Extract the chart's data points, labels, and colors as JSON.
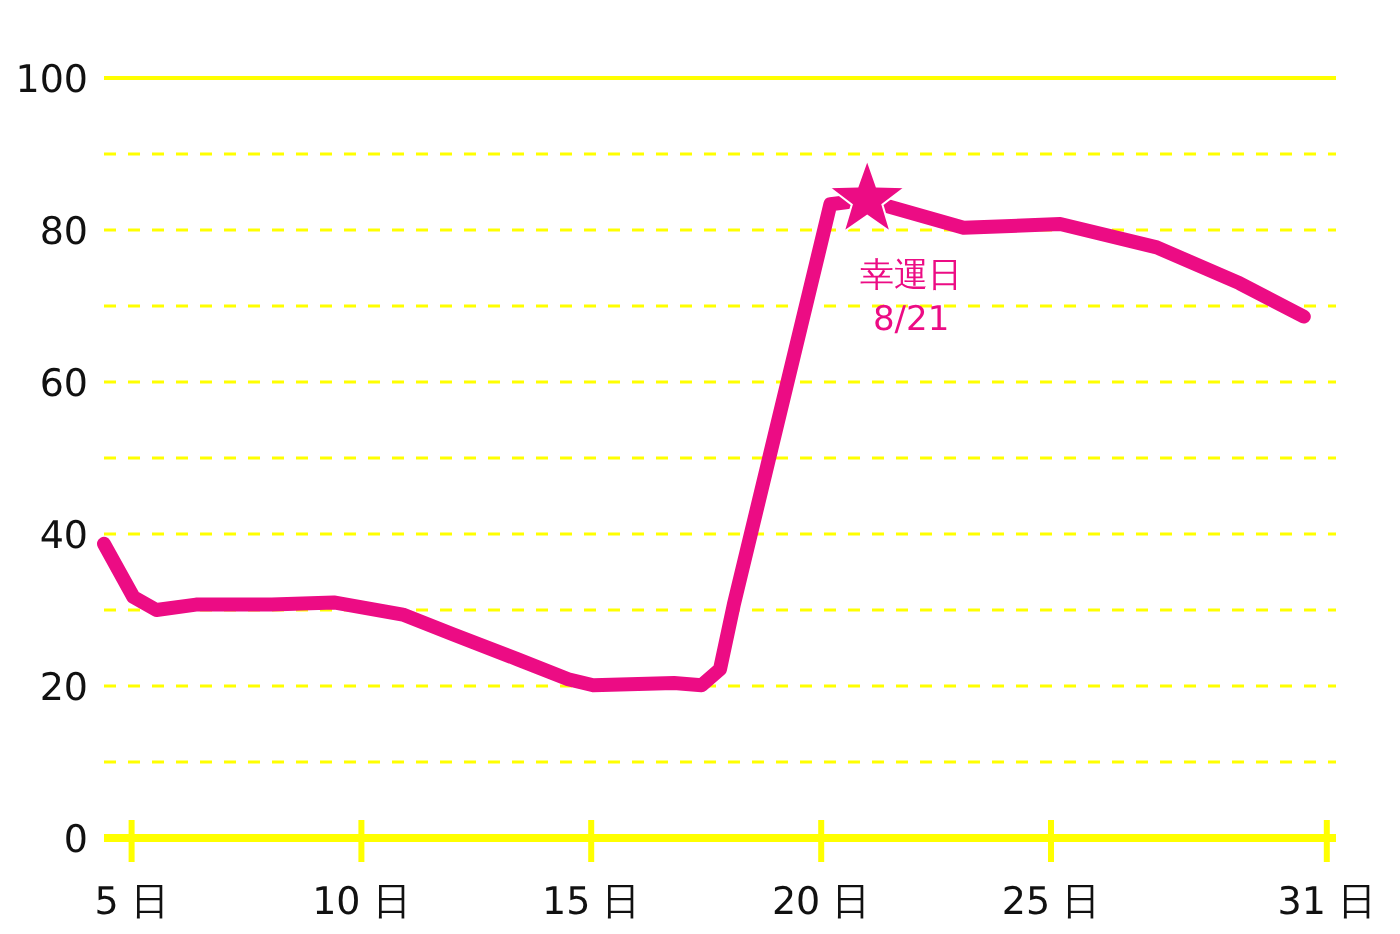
{
  "chart_data": {
    "type": "line",
    "x": [
      4.4,
      5.04,
      5.54,
      6.4,
      8.05,
      9.4,
      10.9,
      12,
      13.4,
      14.5,
      15.04,
      16.8,
      17.4,
      17.8,
      18.1,
      20.2,
      21,
      21.3,
      23.1,
      25.2,
      27.3,
      29.1,
      30.5
    ],
    "series": [
      {
        "color": "#ec0c84",
        "values": [
          38.7,
          31.7,
          30,
          30.7,
          30.7,
          31,
          29.4,
          26.8,
          23.5,
          20.9,
          20.1,
          20.4,
          20.1,
          22.2,
          30.7,
          83.4,
          84,
          83.4,
          80.3,
          80.8,
          77.7,
          73,
          68.6
        ]
      }
    ],
    "xlim": [
      4.4,
      31.2
    ],
    "xticks": [
      {
        "value": 5,
        "label": "5 日"
      },
      {
        "value": 10,
        "label": "10 日"
      },
      {
        "value": 15,
        "label": "15 日"
      },
      {
        "value": 20,
        "label": "20 日"
      },
      {
        "value": 25,
        "label": "25 日"
      },
      {
        "value": 31,
        "label": "31 日"
      }
    ],
    "ylim": [
      0,
      100
    ],
    "yticks": [
      0,
      {
        "value": 10,
        "label": null
      },
      20,
      {
        "value": 30,
        "label": null
      },
      40,
      {
        "value": 50,
        "label": null
      },
      60,
      {
        "value": 70,
        "label": null
      },
      80,
      {
        "value": 90,
        "label": null
      },
      100
    ],
    "grid": "y",
    "marker": "none",
    "annotations": [
      {
        "text": "幸運日\n8/21",
        "x": 21,
        "y": 84
      }
    ]
  }
}
